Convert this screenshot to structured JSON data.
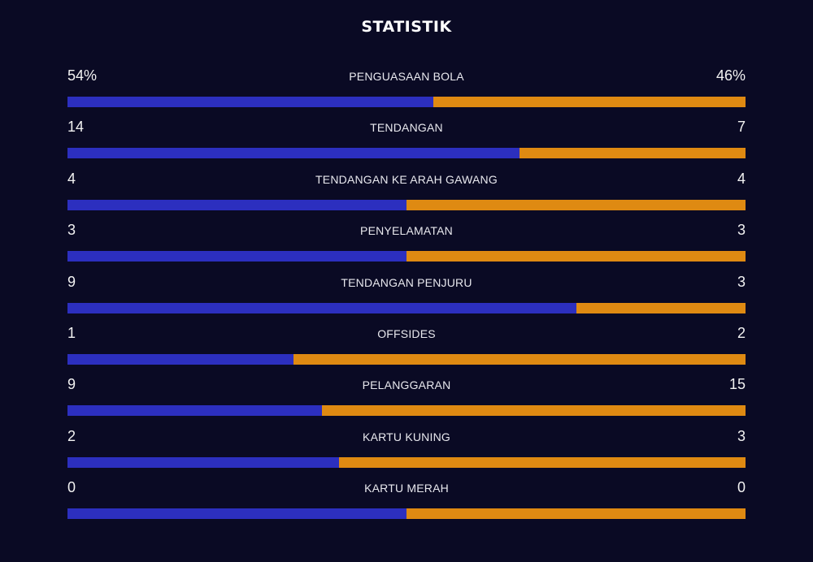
{
  "title": "STATISTIK",
  "colors": {
    "background": "#0a0a24",
    "home": "#2c2fbf",
    "away": "#df8a12"
  },
  "stats": [
    {
      "label": "PENGUASAAN BOLA",
      "left": "54%",
      "right": "46%",
      "home_share": 0.54
    },
    {
      "label": "TENDANGAN",
      "left": "14",
      "right": "7",
      "home_share": 0.667
    },
    {
      "label": "TENDANGAN KE ARAH GAWANG",
      "left": "4",
      "right": "4",
      "home_share": 0.5
    },
    {
      "label": "PENYELAMATAN",
      "left": "3",
      "right": "3",
      "home_share": 0.5
    },
    {
      "label": "TENDANGAN PENJURU",
      "left": "9",
      "right": "3",
      "home_share": 0.75
    },
    {
      "label": "OFFSIDES",
      "left": "1",
      "right": "2",
      "home_share": 0.333
    },
    {
      "label": "PELANGGARAN",
      "left": "9",
      "right": "15",
      "home_share": 0.375
    },
    {
      "label": "KARTU KUNING",
      "left": "2",
      "right": "3",
      "home_share": 0.4
    },
    {
      "label": "KARTU MERAH",
      "left": "0",
      "right": "0",
      "home_share": 0.5
    }
  ]
}
